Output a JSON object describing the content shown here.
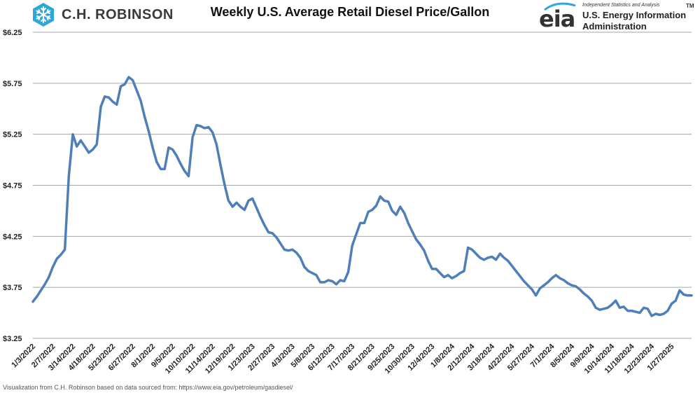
{
  "header": {
    "brand_left": "C.H. ROBINSON",
    "title": "Weekly U.S. Average Retail Diesel Price/Gallon",
    "brand_right_mark": "eia",
    "brand_right_tagline": "Independent Statistics and Analysis",
    "brand_right_tm": "TM",
    "brand_right_name_line1": "U.S. Energy Information",
    "brand_right_name_line2": "Administration"
  },
  "footer": {
    "source_note": "Visualization from C.H. Robinson based on data sourced from: https://www.eia.gov/petroleum/gasdiesel/"
  },
  "colors": {
    "line": "#4f7fb9",
    "grid": "#a6a6a6",
    "axis_text": "#222222"
  },
  "icons": [
    "chr-snowflake-logo-icon",
    "eia-logo-icon"
  ],
  "chart_data": {
    "type": "line",
    "title": "Weekly U.S. Average Retail Diesel Price/Gallon",
    "xlabel": "",
    "ylabel": "",
    "ylim": [
      3.25,
      6.25
    ],
    "yticks": [
      "$3.25",
      "$3.75",
      "$4.25",
      "$4.75",
      "$5.25",
      "$5.75",
      "$6.25"
    ],
    "grid": "horizontal",
    "legend": "none",
    "xticks": [
      "1/3/2022",
      "2/7/2022",
      "3/14/2022",
      "4/18/2022",
      "5/23/2022",
      "6/27/2022",
      "8/1/2022",
      "9/5/2022",
      "10/10/2022",
      "11/14/2022",
      "12/19/2022",
      "1/23/2023",
      "2/27/2023",
      "4/3/2023",
      "5/8/2023",
      "6/12/2023",
      "7/17/2023",
      "8/21/2023",
      "9/25/2023",
      "10/30/2023",
      "12/4/2023",
      "1/8/2024",
      "2/12/2024",
      "3/18/2024",
      "4/22/2024",
      "5/27/2024",
      "7/1/2024",
      "8/5/2024",
      "9/9/2024",
      "10/14/2024",
      "11/18/2024",
      "12/23/2024",
      "1/27/2025"
    ],
    "series": [
      {
        "values": [
          3.61,
          3.66,
          3.72,
          3.78,
          3.85,
          3.95,
          4.03,
          4.07,
          4.12,
          4.84,
          5.25,
          5.13,
          5.19,
          5.13,
          5.07,
          5.1,
          5.15,
          5.52,
          5.62,
          5.61,
          5.57,
          5.54,
          5.72,
          5.74,
          5.81,
          5.78,
          5.68,
          5.58,
          5.42,
          5.28,
          5.12,
          4.98,
          4.91,
          4.91,
          5.12,
          5.1,
          5.04,
          4.96,
          4.89,
          4.84,
          5.22,
          5.34,
          5.33,
          5.31,
          5.32,
          5.27,
          5.15,
          4.95,
          4.76,
          4.6,
          4.54,
          4.58,
          4.54,
          4.51,
          4.6,
          4.62,
          4.53,
          4.44,
          4.36,
          4.29,
          4.28,
          4.24,
          4.18,
          4.12,
          4.11,
          4.12,
          4.09,
          4.04,
          3.95,
          3.91,
          3.89,
          3.87,
          3.8,
          3.8,
          3.82,
          3.81,
          3.78,
          3.82,
          3.81,
          3.9,
          4.16,
          4.27,
          4.38,
          4.38,
          4.49,
          4.51,
          4.55,
          4.64,
          4.6,
          4.59,
          4.5,
          4.46,
          4.54,
          4.48,
          4.38,
          4.3,
          4.22,
          4.17,
          4.11,
          4.01,
          3.93,
          3.93,
          3.89,
          3.85,
          3.87,
          3.84,
          3.86,
          3.89,
          3.91,
          4.14,
          4.12,
          4.08,
          4.04,
          4.02,
          4.04,
          4.05,
          4.02,
          4.08,
          4.04,
          4.01,
          3.96,
          3.91,
          3.86,
          3.81,
          3.77,
          3.73,
          3.67,
          3.74,
          3.77,
          3.8,
          3.84,
          3.87,
          3.84,
          3.82,
          3.79,
          3.77,
          3.76,
          3.73,
          3.69,
          3.66,
          3.62,
          3.55,
          3.53,
          3.54,
          3.55,
          3.58,
          3.62,
          3.55,
          3.56,
          3.52,
          3.52,
          3.51,
          3.5,
          3.55,
          3.54,
          3.47,
          3.49,
          3.48,
          3.49,
          3.52,
          3.59,
          3.62,
          3.72,
          3.68,
          3.67,
          3.67
        ]
      }
    ]
  }
}
